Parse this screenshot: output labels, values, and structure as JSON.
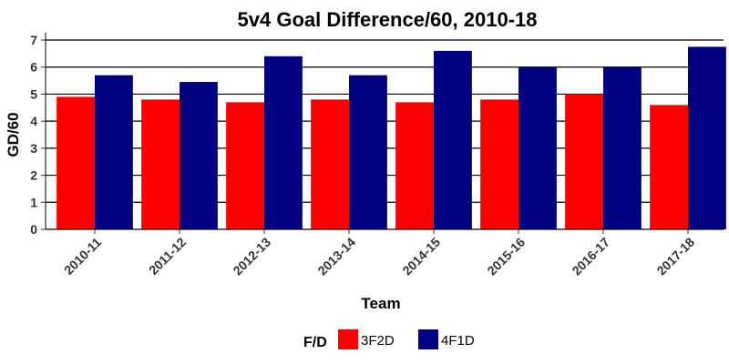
{
  "chart_data": {
    "type": "bar",
    "title": "5v4 Goal Difference/60, 2010-18",
    "xlabel": "Team",
    "ylabel": "GD/60",
    "categories": [
      "2010-11",
      "2011-12",
      "2012-13",
      "2013-14",
      "2014-15",
      "2015-16",
      "2016-17",
      "2017-18"
    ],
    "series": [
      {
        "name": "3F2D",
        "color": "#ff0000",
        "values": [
          4.9,
          4.8,
          4.7,
          4.8,
          4.7,
          4.8,
          5.0,
          4.6
        ]
      },
      {
        "name": "4F1D",
        "color": "#000080",
        "values": [
          5.7,
          5.45,
          6.4,
          5.7,
          6.6,
          6.0,
          6.0,
          6.75
        ]
      }
    ],
    "ylim": [
      0,
      7
    ],
    "yticks": [
      0,
      1,
      2,
      3,
      4,
      5,
      6,
      7
    ],
    "grid": true,
    "legend": {
      "title": "F/D",
      "position": "bottom"
    }
  }
}
